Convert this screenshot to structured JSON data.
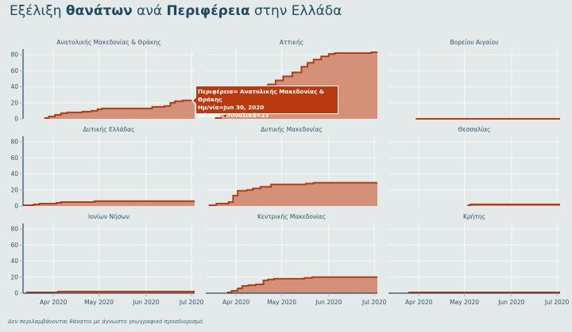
{
  "title": {
    "prefix": "Εξέλιξη ",
    "bold1": "θανάτων",
    "mid": " ανά ",
    "bold2": "Περιφέρεια",
    "suffix": " στην Ελλάδα"
  },
  "note": "Δεν περιλαμβάνονται θάνατοι με άγνωστο γεωγραφικό προσδιορισμό.",
  "tooltip": {
    "line1": "Περιφέρεια= Ανατολικής Μακεδονίας & Θράκης",
    "line2": "Ημ/νία=Jun 30, 2020",
    "line3": "Θάνατοι συνολικά=23"
  },
  "colors": {
    "line": "#b83a0e",
    "fill": "#d4917a",
    "axis": "#1d4e63",
    "grid": "#f6f8f8"
  },
  "chart_data": {
    "type": "area",
    "facets": "3x3",
    "xlim": [
      "2020-03-12",
      "2020-07-03"
    ],
    "ylim": [
      0,
      87
    ],
    "yticks": [
      0,
      20,
      40,
      60,
      80
    ],
    "xticks": [
      {
        "date": "2020-04-01",
        "label": "Apr 2020"
      },
      {
        "date": "2020-05-01",
        "label": "May 2020"
      },
      {
        "date": "2020-06-01",
        "label": "Jun 2020"
      },
      {
        "date": "2020-07-01",
        "label": "Jul 2020"
      }
    ],
    "series": [
      {
        "name": "Ανατολικής Μακεδονίας & Θράκης",
        "points": [
          [
            "2020-03-26",
            1
          ],
          [
            "2020-03-29",
            3
          ],
          [
            "2020-04-02",
            5
          ],
          [
            "2020-04-06",
            7
          ],
          [
            "2020-04-10",
            8
          ],
          [
            "2020-04-20",
            9
          ],
          [
            "2020-04-26",
            10
          ],
          [
            "2020-04-30",
            12
          ],
          [
            "2020-05-03",
            13
          ],
          [
            "2020-06-05",
            15
          ],
          [
            "2020-06-13",
            16
          ],
          [
            "2020-06-17",
            20
          ],
          [
            "2020-06-20",
            22
          ],
          [
            "2020-06-25",
            23
          ],
          [
            "2020-07-03",
            23
          ]
        ]
      },
      {
        "name": "Αττικής",
        "points": [
          [
            "2020-03-18",
            1
          ],
          [
            "2020-03-22",
            4
          ],
          [
            "2020-03-26",
            10
          ],
          [
            "2020-03-30",
            17
          ],
          [
            "2020-04-04",
            25
          ],
          [
            "2020-04-09",
            32
          ],
          [
            "2020-04-15",
            38
          ],
          [
            "2020-04-22",
            43
          ],
          [
            "2020-04-27",
            48
          ],
          [
            "2020-05-02",
            53
          ],
          [
            "2020-05-08",
            58
          ],
          [
            "2020-05-14",
            65
          ],
          [
            "2020-05-18",
            70
          ],
          [
            "2020-05-22",
            74
          ],
          [
            "2020-05-27",
            78
          ],
          [
            "2020-06-01",
            81
          ],
          [
            "2020-06-05",
            82
          ],
          [
            "2020-06-29",
            83
          ],
          [
            "2020-07-03",
            83
          ]
        ]
      },
      {
        "name": "Βορείου Αιγαίου",
        "points": [
          [
            "2020-03-30",
            0
          ],
          [
            "2020-07-03",
            0
          ]
        ]
      },
      {
        "name": "Δυτικής Ελλάδας",
        "points": [
          [
            "2020-03-12",
            1
          ],
          [
            "2020-03-19",
            2
          ],
          [
            "2020-03-23",
            3
          ],
          [
            "2020-04-03",
            4
          ],
          [
            "2020-04-06",
            5
          ],
          [
            "2020-04-28",
            6
          ],
          [
            "2020-07-03",
            6
          ]
        ]
      },
      {
        "name": "Δυτικής Μακεδονίας",
        "points": [
          [
            "2020-03-14",
            1
          ],
          [
            "2020-03-19",
            3
          ],
          [
            "2020-03-27",
            5
          ],
          [
            "2020-03-30",
            13
          ],
          [
            "2020-04-02",
            19
          ],
          [
            "2020-04-08",
            20
          ],
          [
            "2020-04-12",
            22
          ],
          [
            "2020-04-17",
            24
          ],
          [
            "2020-04-24",
            27
          ],
          [
            "2020-05-17",
            28
          ],
          [
            "2020-05-22",
            29
          ],
          [
            "2020-07-03",
            29
          ]
        ]
      },
      {
        "name": "Θεσσαλίας",
        "points": [
          [
            "2020-05-03",
            1
          ],
          [
            "2020-05-05",
            2
          ],
          [
            "2020-07-03",
            2
          ]
        ]
      },
      {
        "name": "Ιονίων Νήσων",
        "points": [
          [
            "2020-03-14",
            1
          ],
          [
            "2020-04-04",
            2
          ],
          [
            "2020-07-03",
            2
          ]
        ]
      },
      {
        "name": "Κεντρικής Μακεδονίας",
        "points": [
          [
            "2020-03-26",
            1
          ],
          [
            "2020-03-29",
            3
          ],
          [
            "2020-04-02",
            6
          ],
          [
            "2020-04-05",
            9
          ],
          [
            "2020-04-09",
            10
          ],
          [
            "2020-04-14",
            11
          ],
          [
            "2020-04-19",
            16
          ],
          [
            "2020-04-22",
            17
          ],
          [
            "2020-04-26",
            18
          ],
          [
            "2020-05-16",
            19
          ],
          [
            "2020-05-21",
            20
          ],
          [
            "2020-07-03",
            20
          ]
        ]
      },
      {
        "name": "Κρήτης",
        "points": [
          [
            "2020-03-25",
            1
          ],
          [
            "2020-07-03",
            1
          ]
        ]
      }
    ]
  }
}
